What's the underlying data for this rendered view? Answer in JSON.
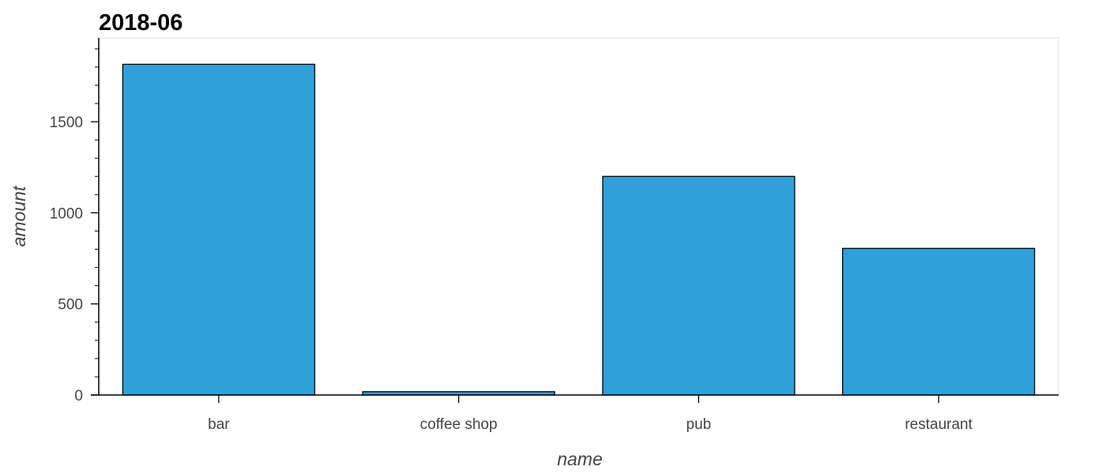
{
  "chart_data": {
    "type": "bar",
    "title": "2018-06",
    "xlabel": "name",
    "ylabel": "amount",
    "categories": [
      "bar",
      "coffee shop",
      "pub",
      "restaurant"
    ],
    "values": [
      1815,
      18,
      1200,
      805
    ],
    "ylim": [
      0,
      1960
    ],
    "yticks": [
      0,
      500,
      1000,
      1500
    ],
    "ytick_labels": [
      "0",
      "500",
      "1000",
      "1500"
    ],
    "minor_tick_step": 100,
    "grid": false,
    "legend": "none",
    "colors": {
      "bar_fill": "#2fa1d9",
      "bar_stroke": "#000000",
      "axis": "#000000",
      "frame": "#e5e5e5"
    }
  }
}
